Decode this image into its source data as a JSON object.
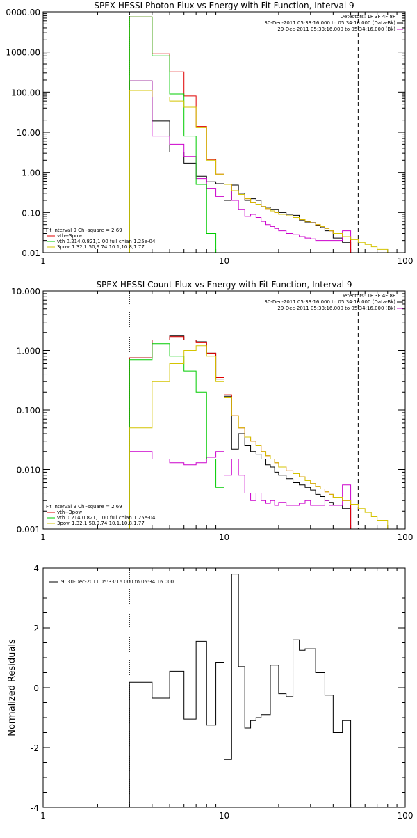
{
  "chart_data": [
    {
      "type": "line",
      "title": "SPEX HESSI Photon Flux vs Energy with Fit Function, Interval 9",
      "xlabel": "",
      "ylabel": "",
      "xscale": "log",
      "yscale": "log",
      "xlim": [
        1,
        100
      ],
      "ylim": [
        0.01,
        10000
      ],
      "xtick_labels": [
        "1",
        "10",
        "100"
      ],
      "ytick_labels": [
        "0.01",
        "0.10",
        "1.00",
        "10.00",
        "100.00",
        "1000.00",
        "0000.00"
      ],
      "info": {
        "detectors": "Detectors: 1F 3F 4F 8F",
        "data_time": "30-Dec-2011 05:33:16.000 to 05:34:16.000 (Data-Bk)",
        "bk_time": "29-Dec-2011 05:33:16.000 to 05:34:16.000 (Bk)"
      },
      "legend": {
        "title": "Fit Interval 9   Chi-square = 2.69",
        "entries": [
          {
            "label": "vth+3pow",
            "color": "#e00000"
          },
          {
            "label": "vth 0.214,0.821,1.00  full chian 1.25e-04",
            "color": "#00cc00"
          },
          {
            "label": "3pow 1.32,1.50,9.74,10.1,10.8,1.77",
            "color": "#d4c400"
          }
        ]
      },
      "edges": [
        3,
        3.5,
        4,
        4.5,
        5,
        5.5,
        6,
        6.5,
        7,
        7.5,
        8,
        8.5,
        9,
        9.5,
        10,
        11,
        12,
        13,
        14,
        15,
        16,
        17,
        18,
        19,
        20,
        22,
        24,
        26,
        28,
        30,
        32,
        34,
        36,
        38,
        40,
        45,
        50,
        55,
        60,
        65,
        70,
        80
      ],
      "series": [
        {
          "name": "Data-Bk",
          "color": "#000000",
          "values": [
            190,
            190,
            19,
            19,
            3.2,
            3.2,
            1.7,
            1.7,
            0.8,
            0.8,
            0.58,
            0.58,
            0.52,
            0.52,
            0.2,
            0.48,
            0.3,
            0.2,
            0.22,
            0.2,
            0.14,
            0.135,
            0.12,
            0.12,
            0.1,
            0.09,
            0.085,
            0.065,
            0.058,
            0.056,
            0.048,
            0.042,
            0.035,
            0.035,
            0.023,
            0.018
          ]
        },
        {
          "name": "Bk",
          "color": "#cc00cc",
          "values": [
            190,
            190,
            8,
            8,
            5,
            5,
            2.5,
            2.5,
            0.7,
            0.7,
            0.4,
            0.4,
            0.25,
            0.25,
            0.5,
            0.2,
            0.12,
            0.08,
            0.09,
            0.075,
            0.06,
            0.05,
            0.045,
            0.04,
            0.035,
            0.03,
            0.028,
            0.025,
            0.023,
            0.022,
            0.02,
            0.02,
            0.02,
            0.02,
            0.02,
            0.035
          ]
        },
        {
          "name": "vth+3pow",
          "color": "#e00000",
          "values": [
            7500,
            7500,
            900,
            900,
            320,
            320,
            80,
            80,
            14,
            14,
            2.1,
            2.1,
            0.9,
            0.9,
            0.5,
            0.35,
            0.28,
            0.22,
            0.18,
            0.16,
            0.14,
            0.125,
            0.11,
            0.1,
            0.09,
            0.083,
            0.075,
            0.067,
            0.06,
            0.055,
            0.05,
            0.045,
            0.04,
            0.035,
            0.03,
            0.025
          ]
        },
        {
          "name": "vth",
          "color": "#00cc00",
          "values": [
            7500,
            7500,
            800,
            800,
            90,
            90,
            8,
            8,
            0.5,
            0.5,
            0.03,
            0.03,
            0.008,
            0.008
          ]
        },
        {
          "name": "3pow",
          "color": "#d4c400",
          "values": [
            110,
            110,
            75,
            75,
            60,
            60,
            42,
            42,
            13,
            13,
            2,
            2,
            0.9,
            0.9,
            0.5,
            0.35,
            0.28,
            0.22,
            0.18,
            0.16,
            0.14,
            0.125,
            0.11,
            0.1,
            0.09,
            0.083,
            0.075,
            0.067,
            0.06,
            0.055,
            0.05,
            0.045,
            0.04,
            0.035,
            0.03,
            0.025,
            0.021,
            0.018,
            0.016,
            0.014,
            0.012
          ]
        }
      ]
    },
    {
      "type": "line",
      "title": "SPEX HESSI Count Flux vs Energy with Fit Function, Interval 9",
      "xlabel": "",
      "ylabel": "",
      "xscale": "log",
      "yscale": "log",
      "xlim": [
        1,
        100
      ],
      "ylim": [
        0.001,
        10
      ],
      "xtick_labels": [
        "1",
        "10",
        "100"
      ],
      "ytick_labels": [
        "0.001",
        "0.010",
        "0.100",
        "1.000",
        "10.000"
      ],
      "info": {
        "detectors": "Detectors: 1F 3F 4F 8F",
        "data_time": "30-Dec-2011 05:33:16.000 to 05:34:16.000 (Data-Bk)",
        "bk_time": "29-Dec-2011 05:33:16.000 to 05:34:16.000 (Bk)"
      },
      "legend": {
        "title": "Fit Interval 9   Chi-square = 2.69",
        "entries": [
          {
            "label": "vth+3pow",
            "color": "#e00000"
          },
          {
            "label": "vth 0.214,0.821,1.00  full chian 1.25e-04",
            "color": "#00cc00"
          },
          {
            "label": "3pow 1.32,1.50,9.74,10.1,10.8,1.77",
            "color": "#d4c400"
          }
        ]
      },
      "edges": [
        3,
        3.5,
        4,
        4.5,
        5,
        5.5,
        6,
        6.5,
        7,
        7.5,
        8,
        8.5,
        9,
        9.5,
        10,
        11,
        12,
        13,
        14,
        15,
        16,
        17,
        18,
        19,
        20,
        22,
        24,
        26,
        28,
        30,
        32,
        34,
        36,
        38,
        40,
        45,
        50,
        55,
        60,
        65,
        70,
        80
      ],
      "series": [
        {
          "name": "Data-Bk",
          "color": "#000000",
          "values": [
            0.75,
            0.75,
            1.5,
            1.5,
            1.75,
            1.75,
            1.5,
            1.5,
            1.4,
            1.4,
            0.9,
            0.9,
            0.33,
            0.33,
            0.17,
            0.022,
            0.04,
            0.025,
            0.02,
            0.018,
            0.015,
            0.012,
            0.011,
            0.009,
            0.008,
            0.007,
            0.006,
            0.0055,
            0.005,
            0.0045,
            0.0038,
            0.0035,
            0.003,
            0.0028,
            0.0025,
            0.0022
          ]
        },
        {
          "name": "Bk",
          "color": "#cc00cc",
          "values": [
            0.02,
            0.02,
            0.015,
            0.015,
            0.013,
            0.013,
            0.012,
            0.012,
            0.013,
            0.013,
            0.016,
            0.016,
            0.02,
            0.02,
            0.008,
            0.015,
            0.008,
            0.004,
            0.003,
            0.004,
            0.003,
            0.0027,
            0.003,
            0.0025,
            0.0028,
            0.0025,
            0.0025,
            0.0027,
            0.003,
            0.0025,
            0.0025,
            0.0025,
            0.003,
            0.0025,
            0.0025,
            0.0055
          ]
        },
        {
          "name": "vth+3pow",
          "color": "#e00000",
          "values": [
            0.75,
            0.75,
            1.5,
            1.5,
            1.7,
            1.7,
            1.5,
            1.5,
            1.35,
            1.35,
            0.9,
            0.9,
            0.35,
            0.35,
            0.18,
            0.08,
            0.05,
            0.035,
            0.03,
            0.025,
            0.02,
            0.017,
            0.015,
            0.013,
            0.011,
            0.0095,
            0.0085,
            0.0075,
            0.0065,
            0.0058,
            0.0052,
            0.0047,
            0.0042,
            0.0038,
            0.0034,
            0.003
          ]
        },
        {
          "name": "vth",
          "color": "#00cc00",
          "values": [
            0.7,
            0.7,
            1.3,
            1.3,
            0.8,
            0.8,
            0.45,
            0.45,
            0.2,
            0.2,
            0.015,
            0.015,
            0.005,
            0.005
          ]
        },
        {
          "name": "3pow",
          "color": "#d4c400",
          "values": [
            0.05,
            0.05,
            0.3,
            0.3,
            0.6,
            0.6,
            1.0,
            1.0,
            1.2,
            1.2,
            0.8,
            0.8,
            0.3,
            0.3,
            0.16,
            0.08,
            0.05,
            0.035,
            0.03,
            0.025,
            0.02,
            0.017,
            0.015,
            0.013,
            0.011,
            0.0095,
            0.0085,
            0.0075,
            0.0065,
            0.0058,
            0.0052,
            0.0047,
            0.0042,
            0.0038,
            0.0034,
            0.003,
            0.0026,
            0.0022,
            0.0019,
            0.0016,
            0.0014
          ]
        }
      ]
    },
    {
      "type": "line",
      "title": "",
      "xlabel": "",
      "ylabel": "Normalized Residuals",
      "xscale": "log",
      "yscale": "linear",
      "xlim": [
        1,
        100
      ],
      "ylim": [
        -4,
        4
      ],
      "xtick_labels": [
        "1",
        "10",
        "100"
      ],
      "ytick_labels": [
        "-4",
        "-2",
        "0",
        "2",
        "4"
      ],
      "legend": {
        "entries": [
          {
            "label": "9: 30-Dec-2011 05:33:16.000 to 05:34:16.000",
            "color": "#000000"
          }
        ]
      },
      "edges": [
        3,
        3.5,
        4,
        4.5,
        5,
        5.5,
        6,
        6.5,
        7,
        7.5,
        8,
        8.5,
        9,
        9.5,
        10,
        11,
        12,
        13,
        14,
        15,
        16,
        17,
        18,
        19,
        20,
        22,
        24,
        26,
        28,
        30,
        32,
        34,
        36,
        38,
        40,
        45,
        50,
        55
      ],
      "series": [
        {
          "name": "residuals",
          "color": "#000000",
          "values": [
            0.18,
            0.18,
            -0.35,
            -0.35,
            0.55,
            0.55,
            -1.05,
            -1.05,
            1.55,
            1.55,
            -1.25,
            -1.25,
            0.85,
            0.85,
            -2.4,
            3.8,
            0.7,
            -1.35,
            -1.1,
            -1.0,
            -0.9,
            -0.9,
            0.75,
            0.75,
            -0.2,
            -0.3,
            1.6,
            1.25,
            1.3,
            1.3,
            0.5,
            0.5,
            -0.25,
            -0.25,
            -1.5,
            -1.1,
            -4.2
          ]
        }
      ]
    }
  ]
}
